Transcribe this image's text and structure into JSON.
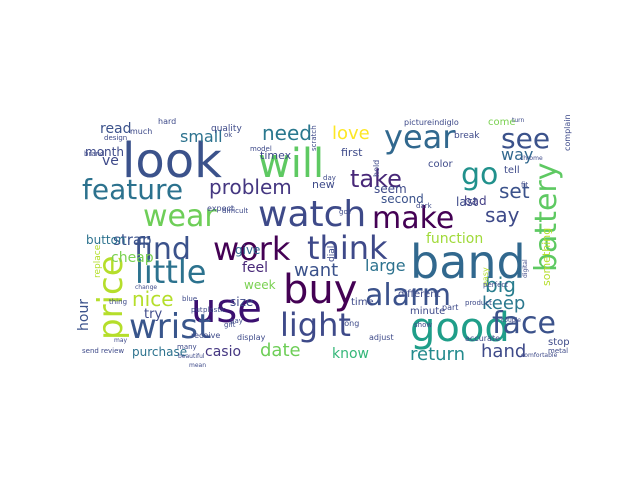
{
  "cloud": {
    "words": [
      {
        "text": "look",
        "color": "#3b528b"
      },
      {
        "text": "will",
        "color": "#5ec962"
      },
      {
        "text": "year",
        "color": "#31688e"
      },
      {
        "text": "see",
        "color": "#3b528b"
      },
      {
        "text": "go",
        "color": "#21918c"
      },
      {
        "text": "feature",
        "color": "#2c728e"
      },
      {
        "text": "take",
        "color": "#482878"
      },
      {
        "text": "wear",
        "color": "#6ece58"
      },
      {
        "text": "watch",
        "color": "#3e4a89"
      },
      {
        "text": "make",
        "color": "#440154"
      },
      {
        "text": "battery",
        "color": "#5ec962"
      },
      {
        "text": "find",
        "color": "#3b528b"
      },
      {
        "text": "work",
        "color": "#440154"
      },
      {
        "text": "think",
        "color": "#3e4989"
      },
      {
        "text": "band",
        "color": "#31688e"
      },
      {
        "text": "little",
        "color": "#2c728e"
      },
      {
        "text": "price",
        "color": "#b5de2b"
      },
      {
        "text": "use",
        "color": "#3b0f70"
      },
      {
        "text": "buy",
        "color": "#440154"
      },
      {
        "text": "alarm",
        "color": "#3b528b"
      },
      {
        "text": "light",
        "color": "#3e4a89"
      },
      {
        "text": "good",
        "color": "#1f9e89"
      },
      {
        "text": "face",
        "color": "#3b528b"
      },
      {
        "text": "wrist",
        "color": "#39568c"
      },
      {
        "text": "problem",
        "color": "#453781"
      },
      {
        "text": "need",
        "color": "#2a788e"
      },
      {
        "text": "love",
        "color": "#fde725"
      },
      {
        "text": "say",
        "color": "#3e4a89"
      },
      {
        "text": "set",
        "color": "#3b528b"
      },
      {
        "text": "big",
        "color": "#287d8e"
      },
      {
        "text": "keep",
        "color": "#2a788e"
      },
      {
        "text": "want",
        "color": "#3b528b"
      },
      {
        "text": "large",
        "color": "#2c728e"
      },
      {
        "text": "date",
        "color": "#6ece58"
      },
      {
        "text": "return",
        "color": "#238a8d"
      },
      {
        "text": "hand",
        "color": "#3e4a89"
      },
      {
        "text": "know",
        "color": "#35b779"
      },
      {
        "text": "nice",
        "color": "#b5de2b"
      },
      {
        "text": "small",
        "color": "#2c728e"
      },
      {
        "text": "strap",
        "color": "#3b528b"
      },
      {
        "text": "function",
        "color": "#a0da39"
      },
      {
        "text": "way",
        "color": "#31688e"
      },
      {
        "text": "bad",
        "color": "#433e85"
      },
      {
        "text": "read",
        "color": "#3b528b"
      },
      {
        "text": "month",
        "color": "#3e4a89"
      },
      {
        "text": "button",
        "color": "#2c728e"
      },
      {
        "text": "ve",
        "color": "#3e4a89"
      },
      {
        "text": "cheap",
        "color": "#7ad151"
      },
      {
        "text": "hour",
        "color": "#3b528b"
      },
      {
        "text": "purchase",
        "color": "#2c728e"
      },
      {
        "text": "casio",
        "color": "#453781"
      },
      {
        "text": "try",
        "color": "#3e4a89"
      },
      {
        "text": "size",
        "color": "#3e4989"
      },
      {
        "text": "feel",
        "color": "#482878"
      },
      {
        "text": "week",
        "color": "#7ad151"
      },
      {
        "text": "give",
        "color": "#31688e"
      },
      {
        "text": "timex",
        "color": "#3e4a89"
      },
      {
        "text": "quality",
        "color": "#3e4a89"
      },
      {
        "text": "new",
        "color": "#3e4a89"
      },
      {
        "text": "first",
        "color": "#3e4a89"
      },
      {
        "text": "second",
        "color": "#3b528b"
      },
      {
        "text": "last",
        "color": "#3e4a89"
      },
      {
        "text": "seem",
        "color": "#3e4a89"
      },
      {
        "text": "color",
        "color": "#3e4a89"
      },
      {
        "text": "come",
        "color": "#7ad151"
      },
      {
        "text": "tell",
        "color": "#3e4a89"
      },
      {
        "text": "break",
        "color": "#3e4a89"
      },
      {
        "text": "picture",
        "color": "#3e4a89"
      },
      {
        "text": "indiglo",
        "color": "#3e4a89"
      },
      {
        "text": "different",
        "color": "#3e4a89"
      },
      {
        "text": "minute",
        "color": "#3e4a89"
      },
      {
        "text": "time",
        "color": "#3e4a89"
      },
      {
        "text": "long",
        "color": "#3e4a89"
      },
      {
        "text": "stop",
        "color": "#3e4a89"
      },
      {
        "text": "metal",
        "color": "#3e4a89"
      },
      {
        "text": "easy",
        "color": "#b5de2b"
      },
      {
        "text": "display",
        "color": "#3e4a89"
      },
      {
        "text": "receive",
        "color": "#3e4a89"
      },
      {
        "text": "adjust",
        "color": "#3e4a89"
      },
      {
        "text": "part",
        "color": "#3e4a89"
      },
      {
        "text": "expect",
        "color": "#3e4a89"
      },
      {
        "text": "difficult",
        "color": "#3e4a89"
      },
      {
        "text": "dial",
        "color": "#3e4a89"
      },
      {
        "text": "product",
        "color": "#3e4a89"
      },
      {
        "text": "perfect",
        "color": "#3e4a89"
      },
      {
        "text": "something",
        "color": "#b5de2b"
      },
      {
        "text": "complain",
        "color": "#3e4a89"
      },
      {
        "text": "replace",
        "color": "#b5de2b"
      },
      {
        "text": "blue",
        "color": "#3e4a89"
      },
      {
        "text": "review",
        "color": "#3e4a89"
      },
      {
        "text": "thing",
        "color": "#3e4a89"
      },
      {
        "text": "put",
        "color": "#3e4a89"
      },
      {
        "text": "plastic",
        "color": "#3e4a89"
      },
      {
        "text": "model",
        "color": "#3e4a89"
      },
      {
        "text": "hard",
        "color": "#3e4a89"
      },
      {
        "text": "much",
        "color": "#3e4a89"
      },
      {
        "text": "design",
        "color": "#3e4a89"
      },
      {
        "text": "brand",
        "color": "#3e4a89"
      },
      {
        "text": "hold",
        "color": "#3e4a89"
      },
      {
        "text": "turn",
        "color": "#3e4a89"
      },
      {
        "text": "dark",
        "color": "#3e4a89"
      },
      {
        "text": "fit",
        "color": "#3e4a89"
      },
      {
        "text": "pay",
        "color": "#3e4a89"
      },
      {
        "text": "gift",
        "color": "#3e4a89"
      },
      {
        "text": "many",
        "color": "#3e4a89"
      },
      {
        "text": "send",
        "color": "#3e4a89"
      },
      {
        "text": "accurate",
        "color": "#3e4a89"
      },
      {
        "text": "beautiful",
        "color": "#3e4a89"
      },
      {
        "text": "digital",
        "color": "#3e4a89"
      },
      {
        "text": "chrome",
        "color": "#3e4a89"
      },
      {
        "text": "scratch",
        "color": "#3e4a89"
      },
      {
        "text": "show",
        "color": "#3e4a89"
      },
      {
        "text": "ok",
        "color": "#3e4a89"
      },
      {
        "text": "got",
        "color": "#3e4a89"
      },
      {
        "text": "day",
        "color": "#3e4a89"
      },
      {
        "text": "mean",
        "color": "#3e4a89"
      },
      {
        "text": "couple",
        "color": "#3e4a89"
      },
      {
        "text": "change",
        "color": "#3e4a89"
      },
      {
        "text": "may",
        "color": "#3e4a89"
      },
      {
        "text": "comfortable",
        "color": "#3e4a89"
      }
    ]
  }
}
